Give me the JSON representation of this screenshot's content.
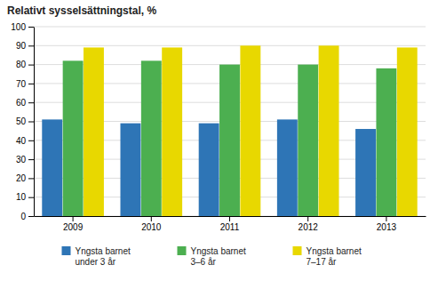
{
  "chart_data": {
    "type": "bar",
    "title": "Relativt sysselsättningstal, %",
    "categories": [
      "2009",
      "2010",
      "2011",
      "2012",
      "2013"
    ],
    "series": [
      {
        "name": "Yngsta barnet\nunder 3 år",
        "color": "#2E75B6",
        "values": [
          51,
          49,
          49,
          51,
          46
        ]
      },
      {
        "name": "Yngsta barnet\n3–6 år",
        "color": "#4CAF50",
        "values": [
          82,
          82,
          80,
          80,
          78
        ]
      },
      {
        "name": "Yngsta barnet\n7–17 år",
        "color": "#E8D800",
        "values": [
          89,
          89,
          90,
          90,
          89
        ]
      }
    ],
    "ylim": [
      0,
      100
    ],
    "yticks": [
      0,
      10,
      20,
      30,
      40,
      50,
      60,
      70,
      80,
      90,
      100
    ],
    "grid": true,
    "legend": "bottom"
  }
}
